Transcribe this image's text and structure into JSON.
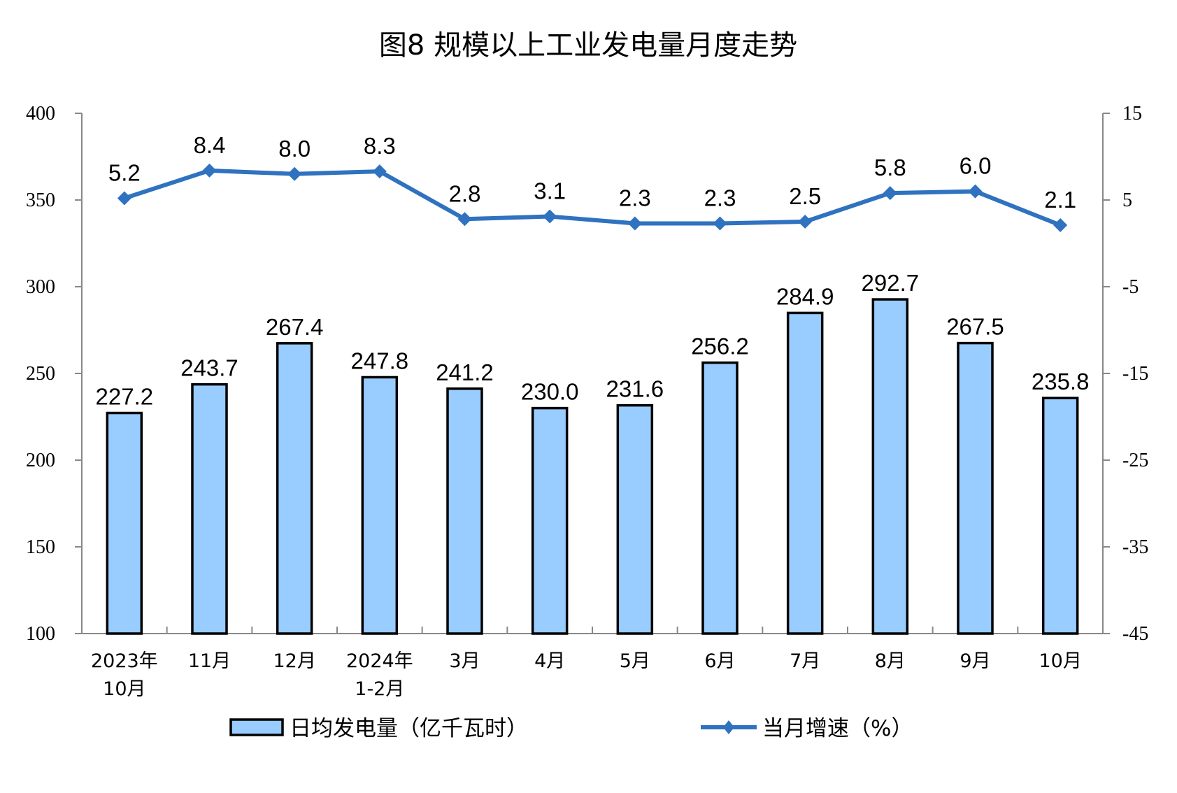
{
  "chart_data": {
    "type": "bar+line",
    "title": "图8  规模以上工业发电量月度走势",
    "categories": [
      [
        "2023年",
        "10月"
      ],
      [
        "11月"
      ],
      [
        "12月"
      ],
      [
        "2024年",
        "1-2月"
      ],
      [
        "3月"
      ],
      [
        "4月"
      ],
      [
        "5月"
      ],
      [
        "6月"
      ],
      [
        "7月"
      ],
      [
        "8月"
      ],
      [
        "9月"
      ],
      [
        "10月"
      ]
    ],
    "series": [
      {
        "name": "日均发电量（亿千瓦时）",
        "type": "bar",
        "axis": "left",
        "color": "#99CCFF",
        "values": [
          227.2,
          243.7,
          267.4,
          247.8,
          241.2,
          230.0,
          231.6,
          256.2,
          284.9,
          292.7,
          267.5,
          235.8
        ]
      },
      {
        "name": "当月增速（%）",
        "type": "line",
        "axis": "right",
        "color": "#2F72C0",
        "values": [
          5.2,
          8.4,
          8.0,
          8.3,
          2.8,
          3.1,
          2.3,
          2.3,
          2.5,
          5.8,
          6.0,
          2.1
        ]
      }
    ],
    "left_axis": {
      "range": [
        100,
        400
      ],
      "ticks": [
        100,
        150,
        200,
        250,
        300,
        350,
        400
      ]
    },
    "right_axis": {
      "range": [
        -45,
        15
      ],
      "ticks": [
        -45,
        -35,
        -25,
        -15,
        -5,
        5,
        15
      ]
    },
    "grid": false,
    "legend": "bottom"
  }
}
